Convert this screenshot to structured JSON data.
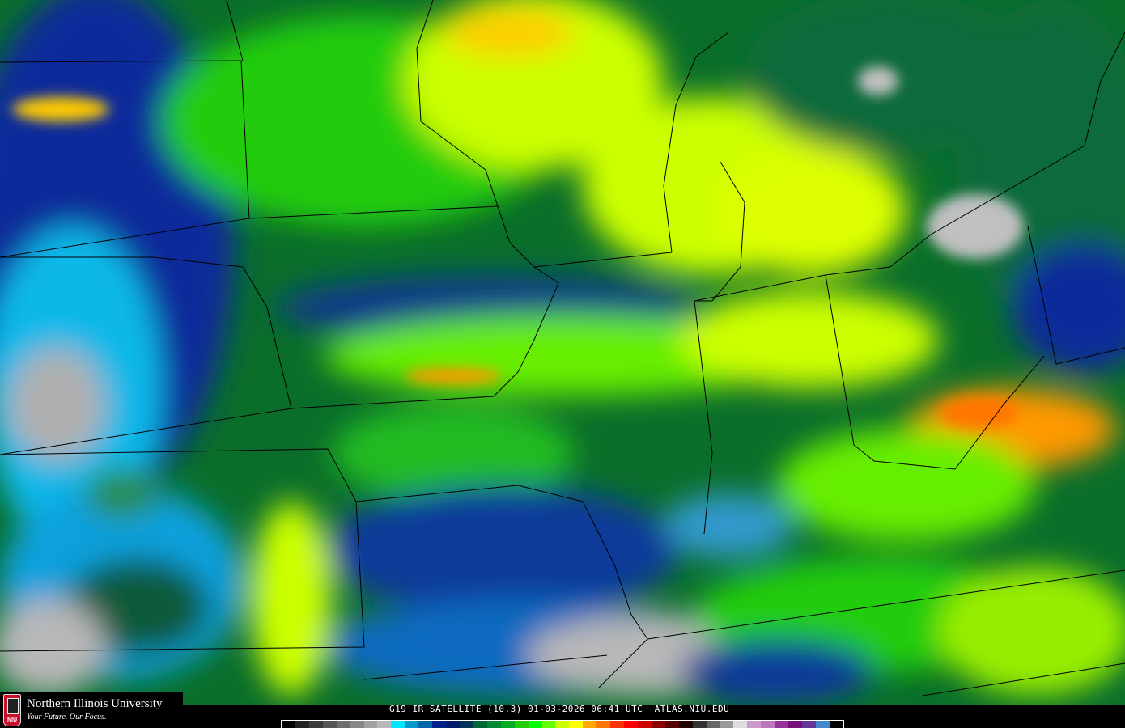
{
  "logo": {
    "name": "Northern Illinois University",
    "tagline": "Your Future. Our Focus.",
    "shield_text": "NIU"
  },
  "caption": "G19 IR SATELLITE (10.3) 01-03-2026 06:41 UTC  ATLAS.NIU.EDU",
  "colorbar": [
    "#000000",
    "#222222",
    "#3a3a3a",
    "#555555",
    "#6e6e6e",
    "#878787",
    "#a0a0a0",
    "#b8b8b8",
    "#00e5ff",
    "#0099cc",
    "#0066aa",
    "#002288",
    "#001a70",
    "#003355",
    "#006633",
    "#008833",
    "#00aa22",
    "#22cc00",
    "#00ff00",
    "#66ff00",
    "#ccff00",
    "#ffff00",
    "#ffaa00",
    "#ff7700",
    "#ff3300",
    "#ff0000",
    "#cc0000",
    "#880000",
    "#550000",
    "#220000",
    "#333333",
    "#666666",
    "#999999",
    "#dddddd",
    "#cc99cc",
    "#bb77bb",
    "#993399",
    "#771177",
    "#663399",
    "#4488cc",
    "#000000"
  ],
  "colors": {
    "cold_cloud": "#ccff00",
    "mid_cloud": "#00cc00",
    "warm": "#0033aa",
    "clear": "#b8b8b8",
    "coldest": "#ffaa00"
  }
}
